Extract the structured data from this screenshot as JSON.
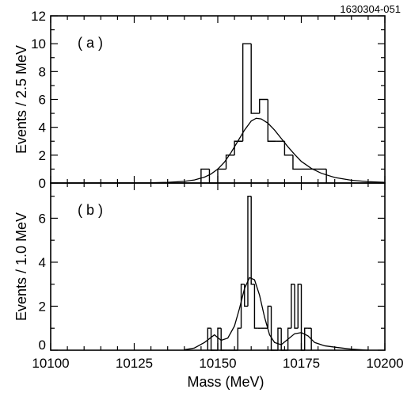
{
  "figure_code": "1630304-051",
  "chart_data": [
    {
      "type": "histogram",
      "panel_label": "( a )",
      "ylabel": "Events / 2.5 MeV",
      "xlabel": "",
      "xlim": [
        10100,
        10200
      ],
      "ylim": [
        0,
        12
      ],
      "x_ticks": [
        10100,
        10125,
        10150,
        10175,
        10200
      ],
      "y_ticks": [
        0,
        2,
        4,
        6,
        8,
        10,
        12
      ],
      "y_tick_labels": [
        "0",
        "2",
        "4",
        "6",
        "8",
        "10",
        "12"
      ],
      "bin_edges": [
        10145,
        10147.5,
        10150,
        10152.5,
        10155,
        10157.5,
        10160,
        10162.5,
        10165,
        10167.5,
        10170,
        10172.5,
        10175,
        10177.5,
        10180,
        10182.5
      ],
      "counts": [
        1,
        0,
        1,
        2,
        3,
        10,
        5,
        6,
        3,
        3,
        2,
        1,
        1,
        1,
        1
      ],
      "fit": {
        "x": [
          10100,
          10130,
          10135,
          10140,
          10143,
          10146,
          10148,
          10150,
          10152,
          10154,
          10156,
          10158,
          10160,
          10161.5,
          10163,
          10165,
          10167,
          10169,
          10171,
          10173,
          10175,
          10178,
          10181,
          10185,
          10190,
          10195,
          10200
        ],
        "y": [
          0,
          0.02,
          0.05,
          0.12,
          0.22,
          0.42,
          0.65,
          1.0,
          1.5,
          2.2,
          3.0,
          3.8,
          4.45,
          4.65,
          4.6,
          4.3,
          3.8,
          3.2,
          2.6,
          2.05,
          1.55,
          1.05,
          0.7,
          0.4,
          0.2,
          0.1,
          0.05
        ]
      }
    },
    {
      "type": "histogram",
      "panel_label": "( b )",
      "ylabel": "Events / 1.0 MeV",
      "xlabel": "Mass (MeV)",
      "xlim": [
        10100,
        10200
      ],
      "ylim": [
        0,
        7.6
      ],
      "x_ticks": [
        10100,
        10125,
        10150,
        10175,
        10200
      ],
      "x_tick_labels": [
        "10100",
        "10125",
        "10150",
        "10175",
        "10200"
      ],
      "y_ticks": [
        0,
        2,
        4,
        6
      ],
      "y_tick_labels": [
        "0",
        "2",
        "4",
        "6"
      ],
      "bin_edges": [
        10147,
        10148,
        10149,
        10150,
        10151,
        10152,
        10153,
        10154,
        10155,
        10156,
        10157,
        10158,
        10159,
        10160,
        10161,
        10162,
        10163,
        10164,
        10165,
        10166,
        10167,
        10168,
        10169,
        10170,
        10171,
        10172,
        10173,
        10174,
        10175,
        10176,
        10177,
        10178
      ],
      "counts": [
        1,
        0,
        0,
        1,
        0,
        0,
        0,
        0,
        0,
        1,
        3,
        2,
        7,
        3,
        1,
        1,
        1,
        1,
        2,
        0,
        0,
        1,
        0,
        0,
        1,
        3,
        1,
        3,
        0,
        1,
        1
      ],
      "fit": {
        "x": [
          10140,
          10143,
          10146,
          10149,
          10151,
          10153,
          10155,
          10156.5,
          10158,
          10159.5,
          10161,
          10162.5,
          10164,
          10165.5,
          10167,
          10169,
          10171,
          10173,
          10175,
          10177,
          10179,
          10182,
          10186,
          10190,
          10195
        ],
        "y": [
          0.02,
          0.1,
          0.35,
          0.7,
          0.45,
          0.55,
          1.1,
          1.9,
          2.8,
          3.3,
          3.2,
          2.5,
          1.5,
          0.7,
          0.35,
          0.25,
          0.5,
          0.75,
          0.8,
          0.65,
          0.35,
          0.2,
          0.12,
          0.05,
          0.0
        ]
      }
    }
  ]
}
